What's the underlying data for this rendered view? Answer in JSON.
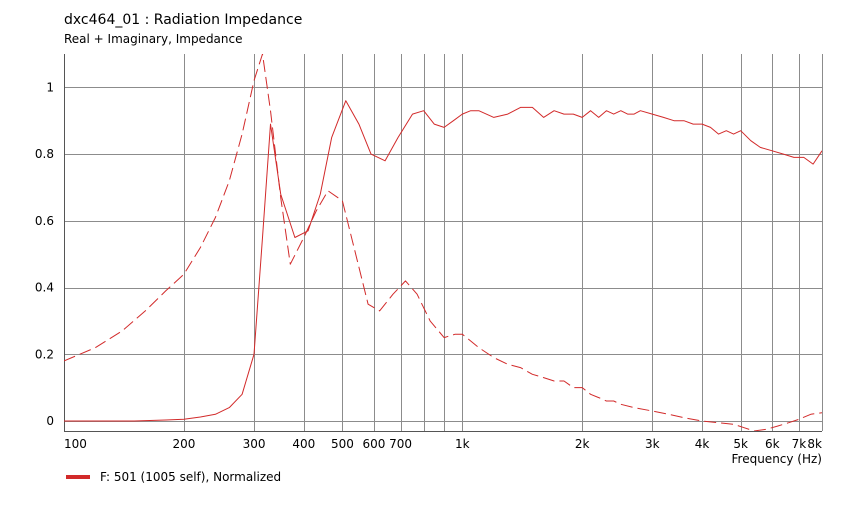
{
  "header": {
    "title": "dxc464_01 : Radiation Impedance",
    "subtitle": "Real + Imaginary, Impedance"
  },
  "legend": {
    "label": "F: 501 (1005 self), Normalized",
    "color": "#d22a2a"
  },
  "chart_data": {
    "type": "line",
    "title": "dxc464_01 : Radiation Impedance",
    "subtitle": "Real + Imaginary, Impedance",
    "xlabel": "Frequency  (Hz)",
    "ylabel": "",
    "x_scale": "log",
    "xlim": [
      100,
      8000
    ],
    "ylim": [
      -0.03,
      1.1
    ],
    "grid": true,
    "legend_position": "bottom-left",
    "x_ticks": [
      {
        "value": 100,
        "label": "100"
      },
      {
        "value": 200,
        "label": "200"
      },
      {
        "value": 300,
        "label": "300"
      },
      {
        "value": 400,
        "label": "400"
      },
      {
        "value": 500,
        "label": "500"
      },
      {
        "value": 600,
        "label": "600"
      },
      {
        "value": 700,
        "label": "700"
      },
      {
        "value": 1000,
        "label": "1k"
      },
      {
        "value": 2000,
        "label": "2k"
      },
      {
        "value": 3000,
        "label": "3k"
      },
      {
        "value": 4000,
        "label": "4k"
      },
      {
        "value": 5000,
        "label": "5k"
      },
      {
        "value": 6000,
        "label": "6k"
      },
      {
        "value": 7000,
        "label": "7k"
      },
      {
        "value": 8000,
        "label": "8k"
      }
    ],
    "x_minor": [
      800,
      900
    ],
    "y_ticks": [
      {
        "value": 0,
        "label": "0"
      },
      {
        "value": 0.2,
        "label": "0.2"
      },
      {
        "value": 0.4,
        "label": "0.4"
      },
      {
        "value": 0.6,
        "label": "0.6"
      },
      {
        "value": 0.8,
        "label": "0.8"
      },
      {
        "value": 1,
        "label": "1"
      }
    ],
    "series": [
      {
        "style": "solid",
        "color": "#d22a2a",
        "x": [
          100,
          150,
          180,
          200,
          220,
          240,
          260,
          280,
          300,
          315,
          330,
          350,
          380,
          410,
          440,
          470,
          510,
          550,
          590,
          640,
          690,
          750,
          800,
          850,
          900,
          950,
          1000,
          1050,
          1100,
          1200,
          1300,
          1400,
          1500,
          1600,
          1700,
          1800,
          1900,
          2000,
          2100,
          2200,
          2300,
          2400,
          2500,
          2600,
          2700,
          2800,
          3000,
          3200,
          3400,
          3600,
          3800,
          4000,
          4200,
          4400,
          4600,
          4800,
          5000,
          5300,
          5600,
          6000,
          6400,
          6800,
          7200,
          7600,
          8000
        ],
        "values": [
          0.0,
          0.0,
          0.003,
          0.005,
          0.012,
          0.02,
          0.04,
          0.08,
          0.2,
          0.55,
          0.89,
          0.68,
          0.55,
          0.57,
          0.68,
          0.85,
          0.96,
          0.89,
          0.8,
          0.78,
          0.85,
          0.92,
          0.93,
          0.89,
          0.88,
          0.9,
          0.92,
          0.93,
          0.93,
          0.91,
          0.92,
          0.94,
          0.94,
          0.91,
          0.93,
          0.92,
          0.92,
          0.91,
          0.93,
          0.91,
          0.93,
          0.92,
          0.93,
          0.92,
          0.92,
          0.93,
          0.92,
          0.91,
          0.9,
          0.9,
          0.89,
          0.89,
          0.88,
          0.86,
          0.87,
          0.86,
          0.87,
          0.84,
          0.82,
          0.81,
          0.8,
          0.79,
          0.79,
          0.77,
          0.81
        ]
      },
      {
        "style": "dashed",
        "color": "#d22a2a",
        "x": [
          100,
          120,
          140,
          160,
          180,
          200,
          220,
          240,
          260,
          280,
          300,
          315,
          330,
          350,
          370,
          400,
          430,
          460,
          500,
          540,
          580,
          620,
          670,
          720,
          770,
          830,
          900,
          960,
          1000,
          1100,
          1200,
          1300,
          1400,
          1500,
          1600,
          1700,
          1800,
          1900,
          2000,
          2100,
          2200,
          2300,
          2400,
          2500,
          2700,
          3000,
          3300,
          3600,
          4000,
          4400,
          4800,
          5100,
          5400,
          5800,
          6200,
          6600,
          7000,
          7500,
          8000
        ],
        "values": [
          0.18,
          0.22,
          0.27,
          0.33,
          0.39,
          0.44,
          0.52,
          0.61,
          0.72,
          0.86,
          1.02,
          1.1,
          0.93,
          0.67,
          0.47,
          0.55,
          0.63,
          0.69,
          0.66,
          0.5,
          0.35,
          0.33,
          0.38,
          0.42,
          0.38,
          0.3,
          0.25,
          0.26,
          0.26,
          0.22,
          0.19,
          0.17,
          0.16,
          0.14,
          0.13,
          0.12,
          0.12,
          0.1,
          0.1,
          0.08,
          0.07,
          0.06,
          0.06,
          0.05,
          0.04,
          0.03,
          0.02,
          0.01,
          0.0,
          -0.005,
          -0.01,
          -0.02,
          -0.03,
          -0.025,
          -0.015,
          -0.005,
          0.005,
          0.02,
          0.025
        ]
      }
    ]
  }
}
